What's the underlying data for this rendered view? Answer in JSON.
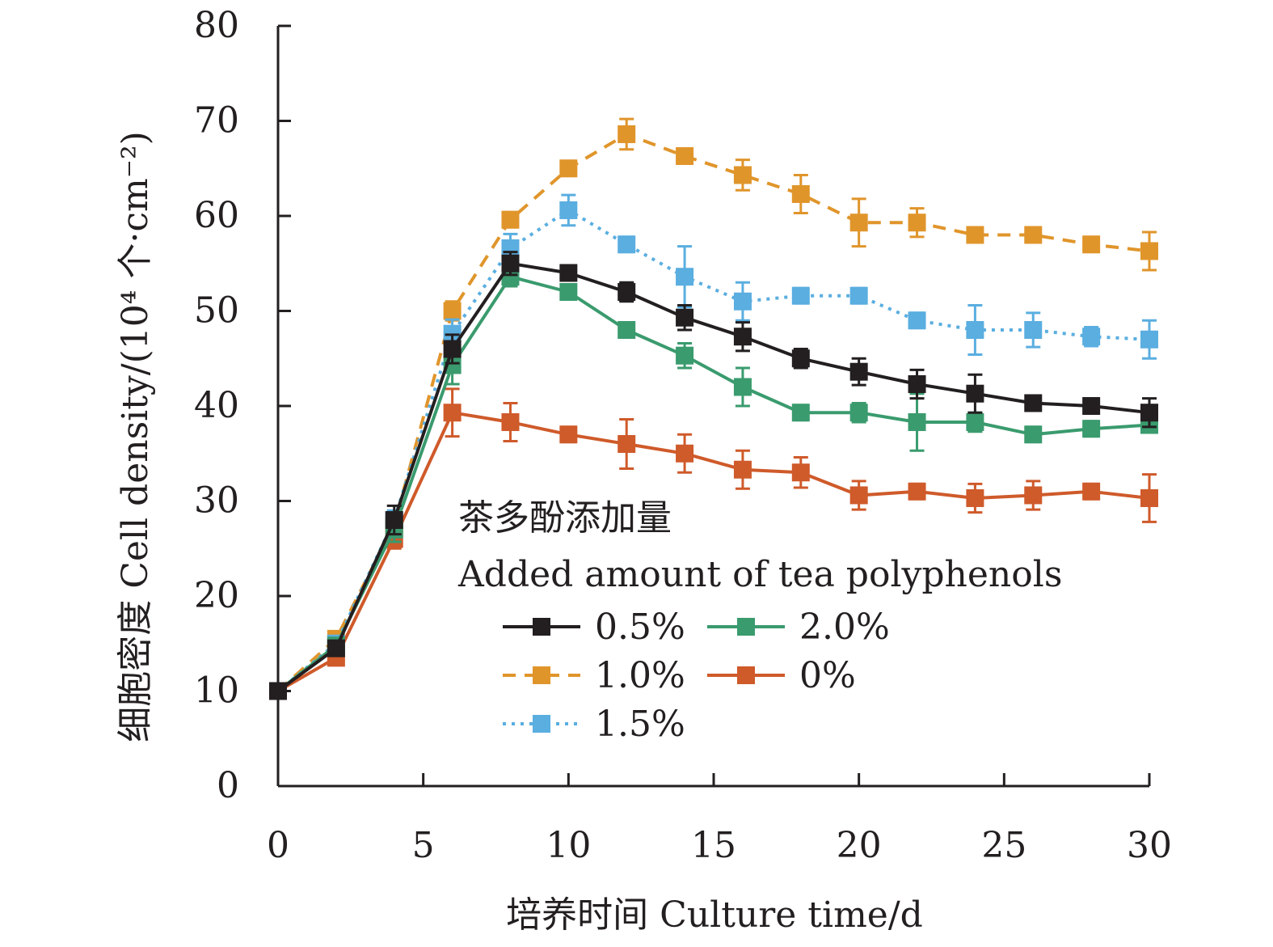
{
  "chart_data": {
    "type": "line",
    "x": [
      0,
      2,
      4,
      6,
      8,
      10,
      12,
      14,
      16,
      18,
      20,
      22,
      24,
      26,
      28,
      30
    ],
    "xlim": [
      0,
      30
    ],
    "ylim": [
      0,
      80
    ],
    "xticks": [
      "0",
      "5",
      "10",
      "15",
      "20",
      "25",
      "30"
    ],
    "yticks": [
      "0",
      "10",
      "20",
      "30",
      "40",
      "50",
      "60",
      "70",
      "80"
    ],
    "xlabel": "培养时间 Culture time/d",
    "ylabel": "细胞密度 Cell density/(10⁴ 个·cm⁻²)",
    "legend_title_cn": "茶多酚添加量",
    "legend_title_en": "Added amount of tea polyphenols",
    "legend_placement": "center",
    "grid": false,
    "series": [
      {
        "name": "0.5%",
        "color": "#231f20",
        "dash": "solid",
        "values": [
          10,
          14.5,
          28,
          46,
          55,
          54,
          52,
          49.3,
          47.3,
          45,
          43.6,
          42.3,
          41.3,
          40.3,
          40,
          39.3
        ],
        "errors": [
          0,
          0.6,
          1.5,
          1.5,
          1.2,
          0.8,
          1.0,
          1.3,
          1.5,
          1.0,
          1.4,
          1.5,
          2.0,
          0.8,
          0.8,
          1.5
        ]
      },
      {
        "name": "1.0%",
        "color": "#e0952b",
        "dash": "dashed",
        "values": [
          10,
          15.5,
          27.5,
          50,
          59.6,
          65,
          68.6,
          66.3,
          64.3,
          62.3,
          59.3,
          59.3,
          58,
          58,
          57,
          56.3
        ],
        "errors": [
          0,
          0.5,
          1.2,
          1.0,
          0.8,
          0.8,
          1.6,
          0.8,
          1.6,
          2.0,
          2.5,
          1.5,
          0.8,
          0.8,
          0.8,
          2.0
        ]
      },
      {
        "name": "1.5%",
        "color": "#5aaee0",
        "dash": "dotted",
        "values": [
          10,
          15,
          28,
          47.6,
          56.6,
          60.6,
          57,
          53.6,
          51,
          51.6,
          51.6,
          49,
          48,
          48,
          47.3,
          47
        ],
        "errors": [
          0,
          0.5,
          1.0,
          1.5,
          1.5,
          1.6,
          0.8,
          3.2,
          2.0,
          0.8,
          0.8,
          0.8,
          2.6,
          1.8,
          1.0,
          2.0
        ]
      },
      {
        "name": "2.0%",
        "color": "#3a9b6e",
        "dash": "solid",
        "values": [
          10,
          14.8,
          27,
          44.3,
          53.6,
          52,
          48,
          45.3,
          42,
          39.3,
          39.3,
          38.3,
          38.3,
          37,
          37.6,
          38
        ],
        "errors": [
          0,
          0.6,
          1.3,
          2.0,
          1.0,
          0.8,
          0.8,
          1.3,
          2.0,
          0.8,
          1.0,
          3.0,
          1.0,
          0.8,
          0.8,
          0.8
        ]
      },
      {
        "name": "0%",
        "color": "#cf5a2a",
        "dash": "solid",
        "values": [
          10,
          13.5,
          26,
          39.3,
          38.3,
          37,
          36,
          35,
          33.3,
          33,
          30.6,
          31,
          30.3,
          30.6,
          31,
          30.3
        ],
        "errors": [
          0,
          0.5,
          1.0,
          2.5,
          2.0,
          0.8,
          2.6,
          2.0,
          2.0,
          1.6,
          1.5,
          0.8,
          1.5,
          1.5,
          0.8,
          2.5
        ]
      }
    ]
  }
}
